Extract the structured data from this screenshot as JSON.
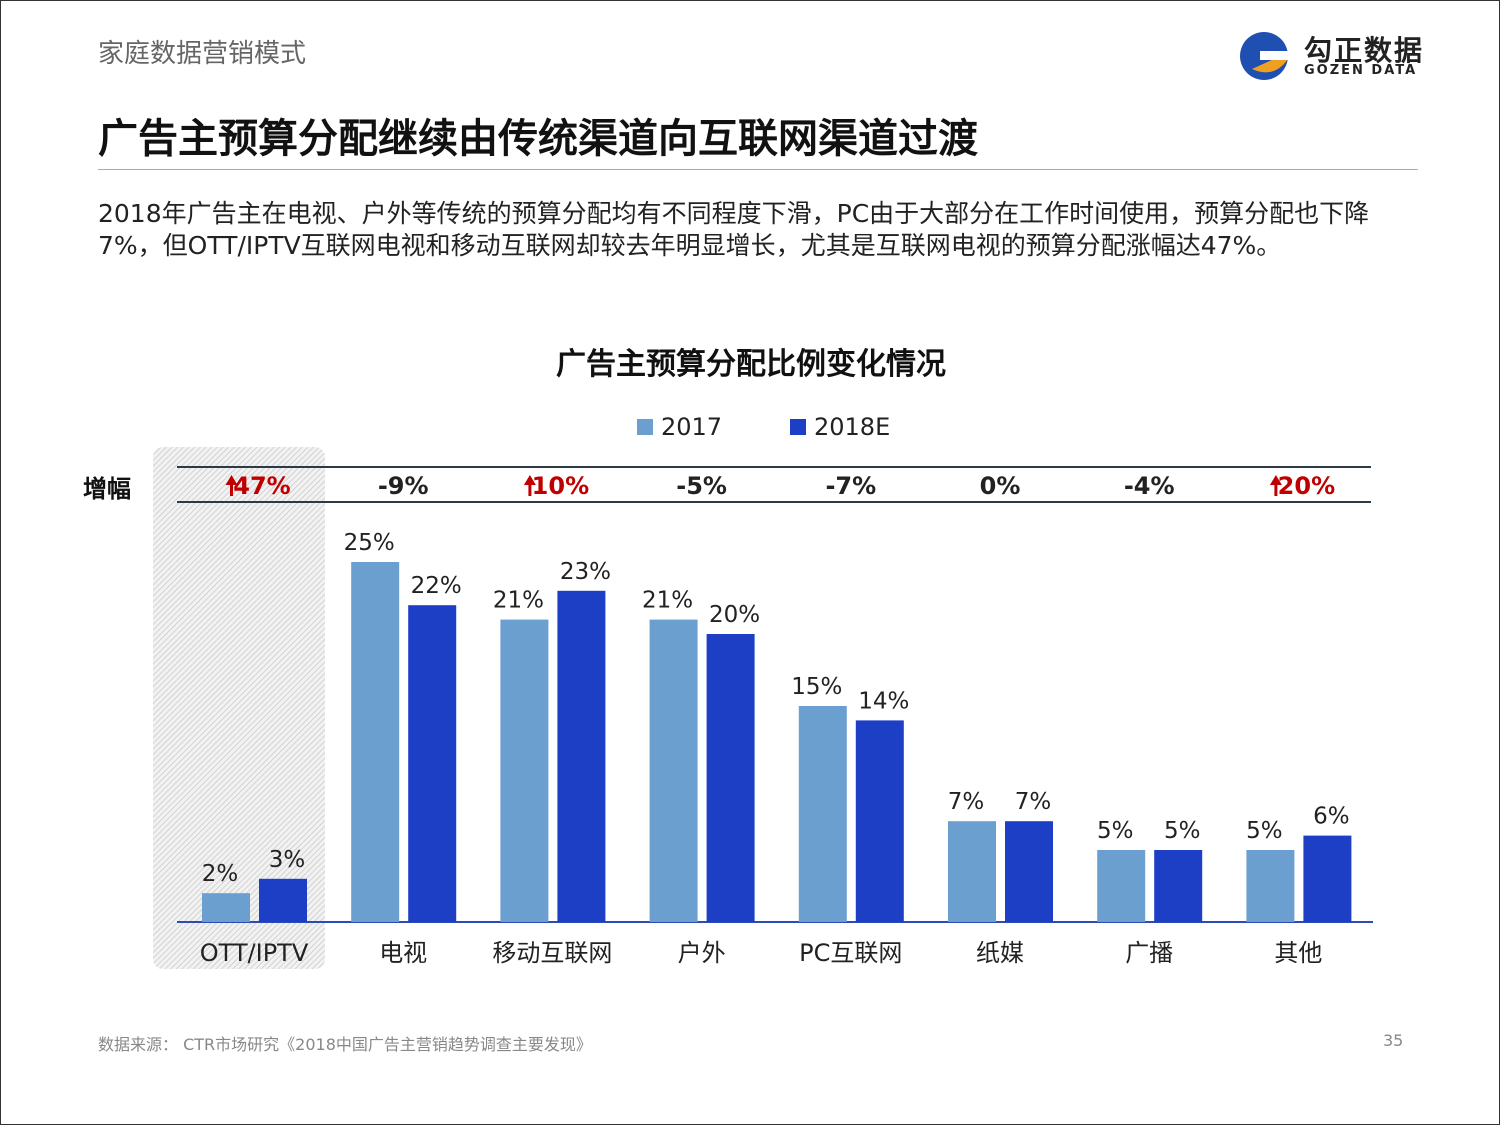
{
  "header": {
    "section": "家庭数据营销模式",
    "title": "广告主预算分配继续由传统渠道向互联网渠道过渡",
    "logo_cn": "勾正数据",
    "logo_en": "GOZEN DATA"
  },
  "description": "2018年广告主在电视、户外等传统的预算分配均有不同程度下滑，PC由于大部分在工作时间使用，预算分配也下降7%，但OTT/IPTV互联网电视和移动互联网却较去年明显增长，尤其是互联网电视的预算分配涨幅达47%。",
  "footer": {
    "source": "数据来源： CTR市场研究《2018中国广告主营销趋势调查主要发现》",
    "page": "35"
  },
  "colors": {
    "s2017": "#6a9fd0",
    "s2018": "#1c3fc6",
    "up": "#c00000"
  },
  "chart_data": {
    "type": "bar",
    "title": "广告主预算分配比例变化情况",
    "categories": [
      "OTT/IPTV",
      "电视",
      "移动互联网",
      "户外",
      "PC互联网",
      "纸媒",
      "广播",
      "其他"
    ],
    "series": [
      {
        "name": "2017",
        "values": [
          2,
          25,
          21,
          21,
          15,
          7,
          5,
          5
        ]
      },
      {
        "name": "2018E",
        "values": [
          3,
          22,
          23,
          20,
          14,
          7,
          5,
          6
        ]
      }
    ],
    "value_labels": [
      [
        "2%",
        "25%",
        "21%",
        "21%",
        "15%",
        "7%",
        "5%",
        "5%"
      ],
      [
        "3%",
        "22%",
        "23%",
        "20%",
        "14%",
        "7%",
        "5%",
        "6%"
      ]
    ],
    "growth_label": "增幅",
    "growth": [
      "47%",
      "-9%",
      "10%",
      "-5%",
      "-7%",
      "0%",
      "-4%",
      "20%"
    ],
    "growth_up": [
      true,
      false,
      true,
      false,
      false,
      false,
      false,
      true
    ],
    "highlighted_category": "OTT/IPTV",
    "legend": "top-center",
    "ylim": [
      0,
      25
    ]
  }
}
